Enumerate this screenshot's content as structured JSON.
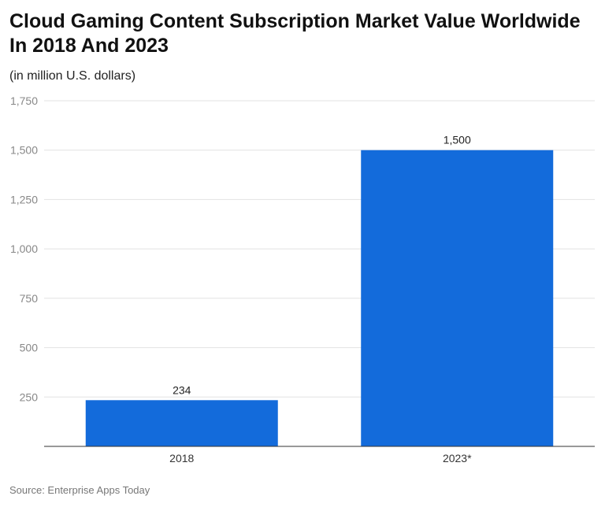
{
  "title": "Cloud Gaming Content Subscription Market Value Worldwide In 2018 And 2023",
  "subtitle": "(in million U.S. dollars)",
  "source": "Source: Enterprise Apps Today",
  "chart_data": {
    "type": "bar",
    "categories": [
      "2018",
      "2023*"
    ],
    "values": [
      234,
      1500
    ],
    "data_labels": [
      "234",
      "1,500"
    ],
    "ylim": [
      0,
      1750
    ],
    "yticks": [
      250,
      500,
      750,
      1000,
      1250,
      1500,
      1750
    ],
    "ytick_labels": [
      "250",
      "500",
      "750",
      "1,000",
      "1,250",
      "1,500",
      "1,750"
    ],
    "grid": true,
    "bar_color": "#136bdb",
    "xlabel": "",
    "ylabel": ""
  }
}
